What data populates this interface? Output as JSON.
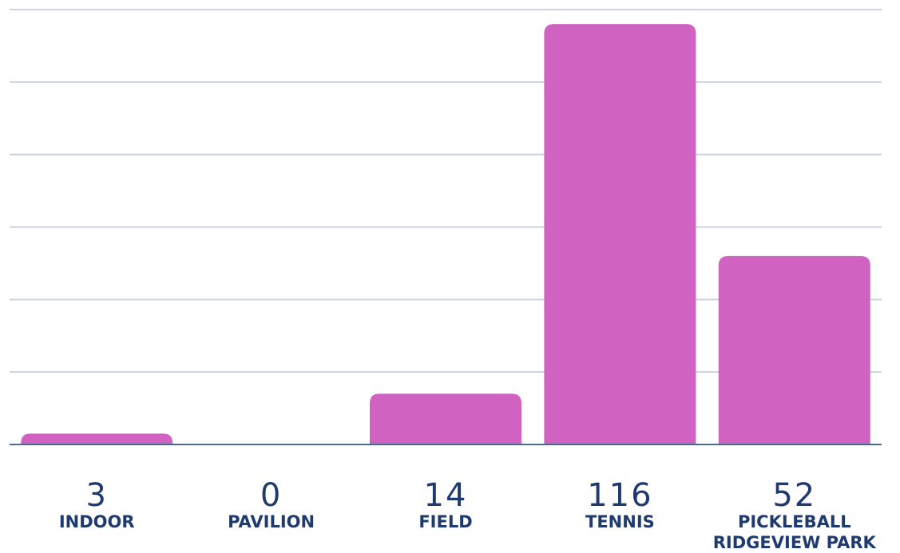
{
  "chart_data": {
    "type": "bar",
    "categories": [
      "INDOOR",
      "PAVILION",
      "FIELD",
      "TENNIS",
      "PICKLEBALL\nRIDGEVIEW PARK"
    ],
    "values": [
      3,
      0,
      14,
      116,
      52
    ],
    "ylim": [
      0,
      120
    ],
    "grid": true,
    "legend": "none",
    "bar_color": "#d063c1",
    "label_color": "#1f3a6e",
    "grid_color": "#c9d3e0"
  }
}
